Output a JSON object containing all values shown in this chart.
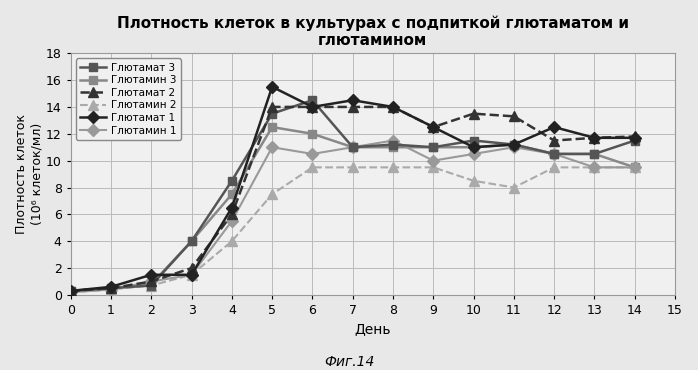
{
  "title": "Плотность клеток в культурах с подпиткой глютаматом и\nглютамином",
  "xlabel": "День",
  "ylabel": "Плотность клеток\n(10⁶ клеток/мл)",
  "caption": "Фиг.14",
  "xlim": [
    0,
    15
  ],
  "ylim": [
    0,
    18
  ],
  "xticks": [
    0,
    1,
    2,
    3,
    4,
    5,
    6,
    7,
    8,
    9,
    10,
    11,
    12,
    13,
    14,
    15
  ],
  "yticks": [
    0,
    2,
    4,
    6,
    8,
    10,
    12,
    14,
    16,
    18
  ],
  "series": [
    {
      "label": "Глютамат 3",
      "x": [
        0,
        1,
        2,
        3,
        4,
        5,
        6,
        7,
        8,
        9,
        10,
        11,
        12,
        13,
        14
      ],
      "y": [
        0.3,
        0.5,
        0.7,
        4.0,
        8.5,
        13.5,
        14.5,
        11.0,
        11.2,
        11.0,
        11.5,
        11.2,
        10.5,
        10.5,
        11.5
      ],
      "color": "#555555",
      "linestyle": "-",
      "marker": "s",
      "linewidth": 1.8,
      "markersize": 6,
      "zorder": 4
    },
    {
      "label": "Глютамин 3",
      "x": [
        0,
        1,
        2,
        3,
        4,
        5,
        6,
        7,
        8,
        9,
        10,
        11,
        12,
        13,
        14
      ],
      "y": [
        0.3,
        0.5,
        0.8,
        4.0,
        7.5,
        12.5,
        12.0,
        11.0,
        11.0,
        11.0,
        11.0,
        11.2,
        10.5,
        10.5,
        9.5
      ],
      "color": "#888888",
      "linestyle": "-",
      "marker": "s",
      "linewidth": 1.8,
      "markersize": 6,
      "zorder": 3
    },
    {
      "label": "Глютамат 2",
      "x": [
        0,
        1,
        2,
        3,
        4,
        5,
        6,
        7,
        8,
        9,
        10,
        11,
        12,
        13,
        14
      ],
      "y": [
        0.3,
        0.5,
        1.0,
        2.0,
        6.0,
        14.0,
        14.0,
        14.0,
        14.0,
        12.5,
        13.5,
        13.3,
        11.5,
        11.7,
        11.8
      ],
      "color": "#333333",
      "linestyle": "--",
      "marker": "^",
      "linewidth": 1.8,
      "markersize": 7,
      "zorder": 4
    },
    {
      "label": "Глютамин 2",
      "x": [
        0,
        1,
        2,
        3,
        4,
        5,
        6,
        7,
        8,
        9,
        10,
        11,
        12,
        13,
        14
      ],
      "y": [
        0.2,
        0.4,
        0.7,
        1.5,
        4.0,
        7.5,
        9.5,
        9.5,
        9.5,
        9.5,
        8.5,
        8.0,
        9.5,
        9.5,
        9.5
      ],
      "color": "#aaaaaa",
      "linestyle": "--",
      "marker": "^",
      "linewidth": 1.5,
      "markersize": 7,
      "zorder": 3
    },
    {
      "label": "Глютамат 1",
      "x": [
        0,
        1,
        2,
        3,
        4,
        5,
        6,
        7,
        8,
        9,
        10,
        11,
        12,
        13,
        14
      ],
      "y": [
        0.3,
        0.6,
        1.5,
        1.5,
        6.5,
        15.5,
        14.0,
        14.5,
        14.0,
        12.5,
        11.0,
        11.2,
        12.5,
        11.7,
        11.7
      ],
      "color": "#222222",
      "linestyle": "-",
      "marker": "D",
      "linewidth": 1.8,
      "markersize": 6,
      "zorder": 5
    },
    {
      "label": "Глютамин 1",
      "x": [
        0,
        1,
        2,
        3,
        4,
        5,
        6,
        7,
        8,
        9,
        10,
        11,
        12,
        13,
        14
      ],
      "y": [
        0.2,
        0.4,
        1.0,
        1.5,
        5.5,
        11.0,
        10.5,
        11.0,
        11.5,
        10.0,
        10.5,
        11.0,
        10.5,
        9.5,
        9.5
      ],
      "color": "#999999",
      "linestyle": "-",
      "marker": "D",
      "linewidth": 1.5,
      "markersize": 6,
      "zorder": 3
    }
  ],
  "background_color": "#e8e8e8",
  "plot_bg_color": "#f0f0f0",
  "grid_color": "#bbbbbb"
}
